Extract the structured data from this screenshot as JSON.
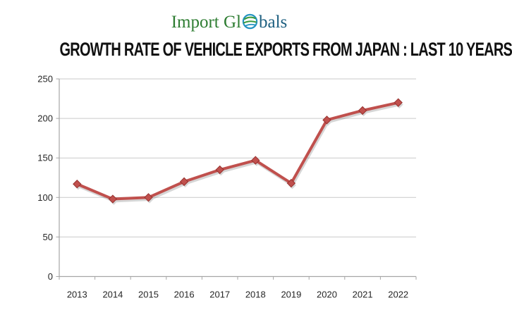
{
  "logo": {
    "text_left": "Import Gl",
    "text_right": "bals",
    "color_left": "#2e7d32",
    "color_right": "#1d5f80"
  },
  "title": "GROWTH RATE OF VEHICLE EXPORTS FROM JAPAN : LAST 10 YEARS",
  "chart_data": {
    "type": "line",
    "title": "GROWTH RATE OF VEHICLE EXPORTS FROM JAPAN : LAST 10 YEARS",
    "categories": [
      "2013",
      "2014",
      "2015",
      "2016",
      "2017",
      "2018",
      "2019",
      "2020",
      "2021",
      "2022"
    ],
    "values": [
      117,
      98,
      100,
      120,
      135,
      147,
      118,
      198,
      210,
      220
    ],
    "xlabel": "",
    "ylabel": "",
    "ylim": [
      0,
      250
    ],
    "yticks": [
      0,
      50,
      100,
      150,
      200,
      250
    ],
    "grid": "horizontal",
    "legend": "none",
    "line_color": "#C0504D",
    "marker": "diamond",
    "marker_color": "#C0504D",
    "marker_edge_color": "#97322F",
    "shadow_color": "#6e6e6e",
    "grid_color": "#C9C9C9",
    "axis_color": "#A6A6A6",
    "tick_label_color": "#262626"
  }
}
